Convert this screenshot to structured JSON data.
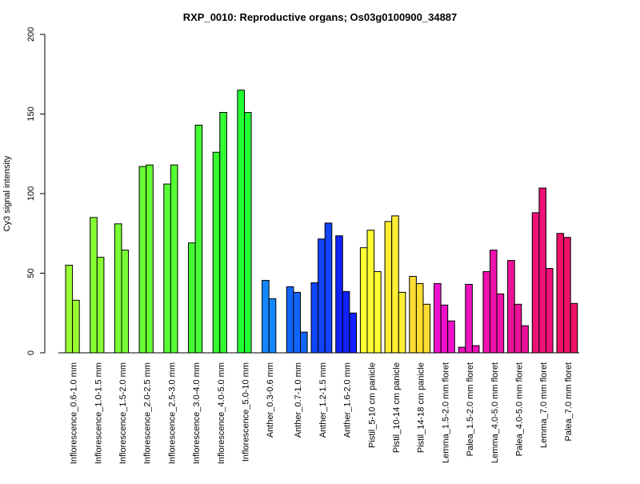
{
  "chart_data": {
    "type": "bar",
    "title": "RXP_0010: Reproductive organs; Os03g0100900_34887",
    "xlabel": "",
    "ylabel": "Cy3 signal intensity",
    "ylim": [
      0,
      200
    ],
    "yticks": [
      0,
      50,
      100,
      150,
      200
    ],
    "grid": false,
    "groups": [
      {
        "label": "Inflorescence_0.6-1.0 mm",
        "color": "#99FF33",
        "values": [
          55,
          33
        ]
      },
      {
        "label": "Inflorescence_1.0-1.5 mm",
        "color": "#88FF33",
        "values": [
          85,
          60
        ]
      },
      {
        "label": "Inflorescence_1.5-2.0 mm",
        "color": "#77FF33",
        "values": [
          81,
          64.5
        ]
      },
      {
        "label": "Inflorescence_2.0-2.5 mm",
        "color": "#66FF33",
        "values": [
          117,
          118
        ]
      },
      {
        "label": "Inflorescence_2.5-3.0 mm",
        "color": "#55FF33",
        "values": [
          106,
          118
        ]
      },
      {
        "label": "Inflorescence_3.0-4.0 mm",
        "color": "#44FF33",
        "values": [
          69,
          143
        ]
      },
      {
        "label": "Inflorescence_4.0-5.0 mm",
        "color": "#33FF33",
        "values": [
          126,
          151
        ]
      },
      {
        "label": "Inflorescence_5.0-10 mm",
        "color": "#22FF33",
        "values": [
          165,
          151
        ]
      },
      {
        "label": "Anther_0.3-0.6 mm",
        "color": "#1188FF",
        "values": [
          45.5,
          34
        ]
      },
      {
        "label": "Anther_0.7-1.0 mm",
        "color": "#1166FF",
        "values": [
          41.5,
          38,
          13
        ]
      },
      {
        "label": "Anther_1.2-1.5 mm",
        "color": "#1144FF",
        "values": [
          44,
          71.5,
          81.5
        ]
      },
      {
        "label": "Anther_1.6-2.0 mm",
        "color": "#1122FF",
        "values": [
          73.5,
          38.5,
          25
        ]
      },
      {
        "label": "Pistil_5-10 cm panicle",
        "color": "#FFFF33",
        "values": [
          66,
          77,
          51
        ]
      },
      {
        "label": "Pistil_10-14 cm panicle",
        "color": "#FFEE33",
        "values": [
          82.5,
          86,
          38
        ]
      },
      {
        "label": "Pistil_14-18 cm panicle",
        "color": "#FFDD33",
        "values": [
          48,
          43.5,
          30.5
        ]
      },
      {
        "label": "Lemma_1.5-2.0 mm floret",
        "color": "#EE11CC",
        "values": [
          43.5,
          30,
          20
        ]
      },
      {
        "label": "Palea_1.5-2.0 mm floret",
        "color": "#EE11BB",
        "values": [
          3.5,
          43,
          4.5
        ]
      },
      {
        "label": "Lemma_4.0-5.0 mm floret",
        "color": "#EE11AA",
        "values": [
          51,
          64.5,
          37
        ]
      },
      {
        "label": "Palea_4.0-5.0 mm floret",
        "color": "#EE1199",
        "values": [
          58,
          30.5,
          17
        ]
      },
      {
        "label": "Lemma_7.0 mm floret",
        "color": "#EE1177",
        "values": [
          88,
          103.5,
          53
        ]
      },
      {
        "label": "Palea_7.0 mm floret",
        "color": "#EE1166",
        "values": [
          75,
          72.5,
          31
        ]
      }
    ]
  }
}
